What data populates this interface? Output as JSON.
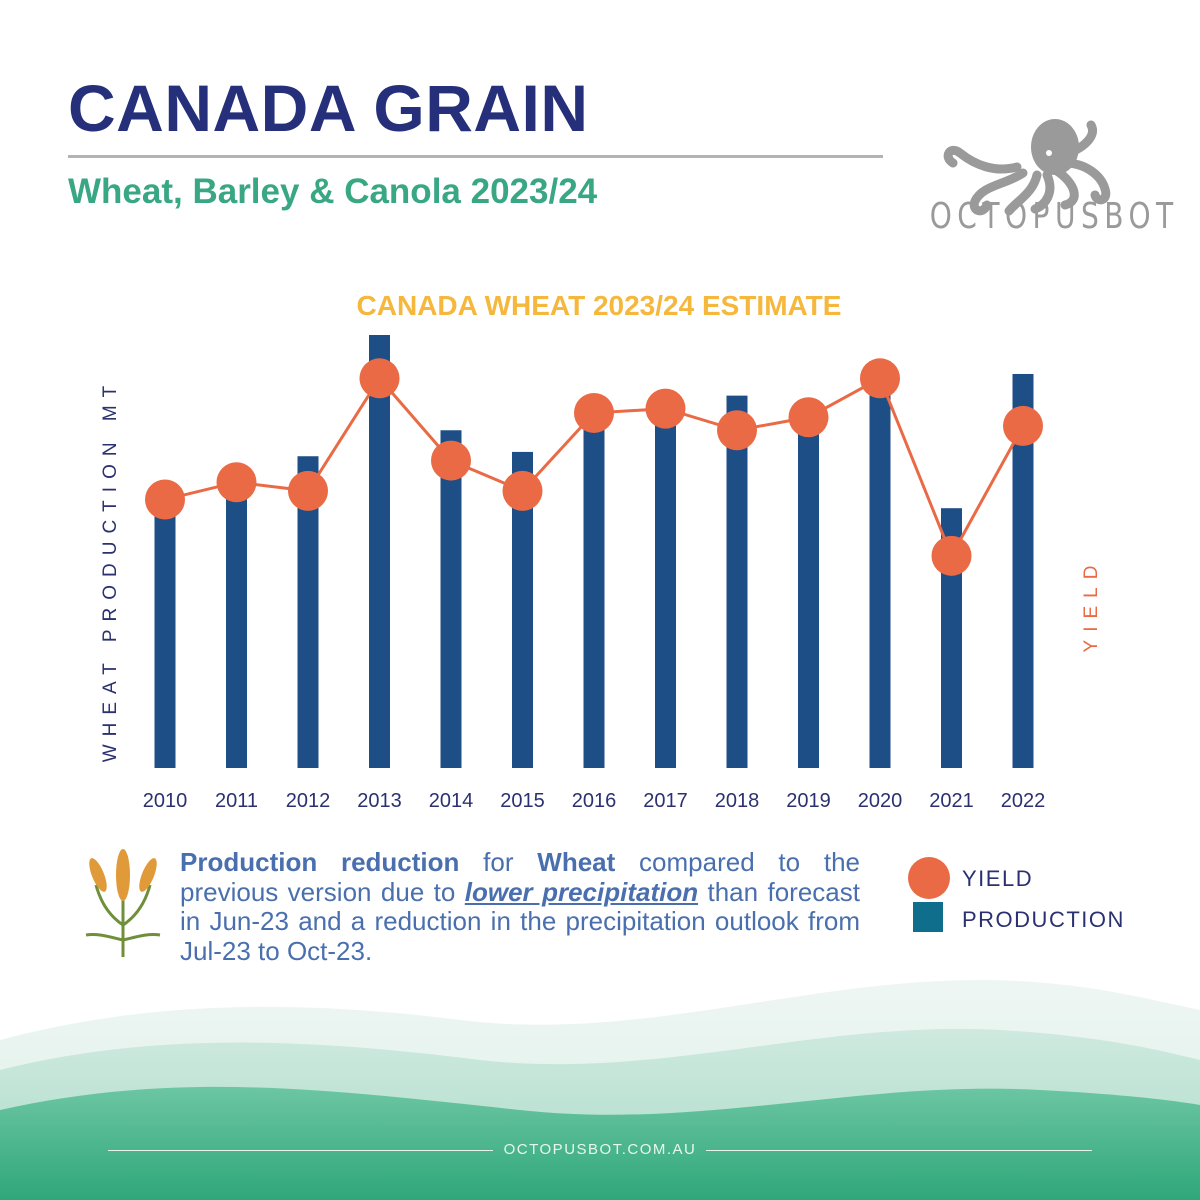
{
  "header": {
    "title": "CANADA GRAIN",
    "subtitle": "Wheat, Barley & Canola 2023/24"
  },
  "logo": {
    "text": "OCTOPUSBOT",
    "icon": "octopus-icon"
  },
  "chart_data": {
    "type": "bar",
    "title": "CANADA WHEAT 2023/24 ESTIMATE",
    "ylabel": "WHEAT PRODUCTION MT",
    "y2label": "YIELD",
    "categories": [
      "2010",
      "2011",
      "2012",
      "2013",
      "2014",
      "2015",
      "2016",
      "2017",
      "2018",
      "2019",
      "2020",
      "2021",
      "2022"
    ],
    "series": [
      {
        "name": "PRODUCTION",
        "type": "bar",
        "values": [
          59,
          64,
          72,
          100,
          78,
          73,
          82,
          83,
          86,
          83,
          94,
          60,
          91
        ]
      },
      {
        "name": "YIELD",
        "type": "line",
        "axis": "secondary",
        "values": [
          62,
          66,
          64,
          90,
          71,
          64,
          82,
          83,
          78,
          81,
          90,
          49,
          79
        ]
      }
    ],
    "ylim": [
      0,
      100
    ],
    "y2lim": [
      0,
      100
    ],
    "grid": false,
    "legend_position": "bottom-right",
    "colors": {
      "PRODUCTION": "#1d4e85",
      "YIELD": "#e96a45"
    }
  },
  "caption": {
    "part1": "Production reduction",
    "part2": " for ",
    "part3": "Wheat",
    "part4": " compared to the previous version due to ",
    "part5": "lower precipitation",
    "part6": " than forecast in Jun-23 and a reduction in the precipitation outlook from Jul-23 to Oct-23.",
    "icon": "wheat-icon"
  },
  "legend": {
    "yield_label": "YIELD",
    "production_label": "PRODUCTION",
    "yield_color": "#e96a45",
    "production_color": "#0e6e8c"
  },
  "footer": {
    "url": "OCTOPUSBOT.COM.AU"
  },
  "colors": {
    "title": "#252f7a",
    "subtitle": "#3aa784",
    "chart_title": "#f5b73c",
    "axis_text": "#2b3170",
    "caption": "#4a6fae"
  }
}
